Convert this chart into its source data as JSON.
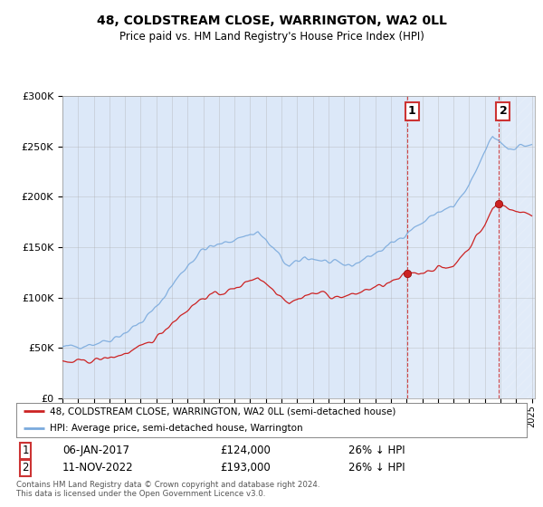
{
  "title": "48, COLDSTREAM CLOSE, WARRINGTON, WA2 0LL",
  "subtitle": "Price paid vs. HM Land Registry's House Price Index (HPI)",
  "hpi_color": "#7aaadd",
  "price_color": "#cc2222",
  "marker1_year": 2017.04,
  "marker2_year": 2022.87,
  "marker1_price": 124000,
  "marker2_price": 193000,
  "marker1_date_str": "06-JAN-2017",
  "marker2_date_str": "11-NOV-2022",
  "marker1_pct": "26% ↓ HPI",
  "marker2_pct": "26% ↓ HPI",
  "legend_label1": "48, COLDSTREAM CLOSE, WARRINGTON, WA2 0LL (semi-detached house)",
  "legend_label2": "HPI: Average price, semi-detached house, Warrington",
  "footer": "Contains HM Land Registry data © Crown copyright and database right 2024.\nThis data is licensed under the Open Government Licence v3.0.",
  "ylim": [
    0,
    300000
  ],
  "yticks": [
    0,
    50000,
    100000,
    150000,
    200000,
    250000,
    300000
  ],
  "background_color": "#dce8f8",
  "grid_color": "#aaaaaa",
  "hatch_color": "#aabbcc"
}
